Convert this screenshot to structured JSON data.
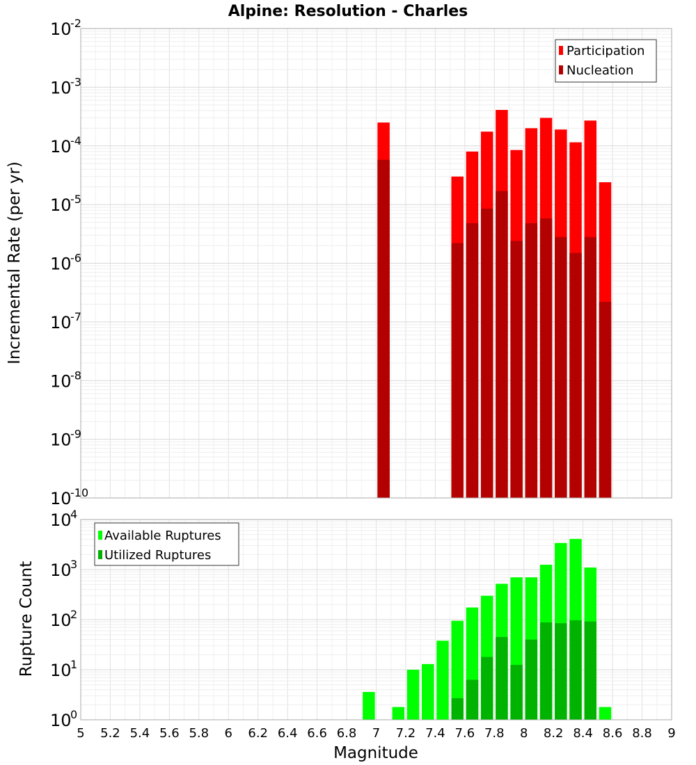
{
  "title": "Alpine: Resolution - Charles",
  "colors": {
    "participation": "#ff0000",
    "nucleation": "#b30000",
    "available": "#00ff00",
    "utilized": "#00b300"
  },
  "chart_data": [
    {
      "type": "bar",
      "name": "rates",
      "ylabel": "Incremental Rate (per yr)",
      "yscale": "log",
      "ylim_exp": [
        -10,
        -2
      ],
      "xlim": [
        5,
        9
      ],
      "grid": true,
      "legend_placement": "top-right",
      "x": [
        7.05,
        7.55,
        7.65,
        7.75,
        7.85,
        7.95,
        8.05,
        8.15,
        8.25,
        8.35,
        8.45,
        8.55
      ],
      "series": [
        {
          "name": "Participation",
          "values": [
            0.00025,
            3e-05,
            8e-05,
            0.000175,
            0.00041,
            8.5e-05,
            0.0002,
            0.0003,
            0.00019,
            0.000115,
            0.00027,
            2.4e-05
          ]
        },
        {
          "name": "Nucleation",
          "values": [
            5.8e-05,
            2.2e-06,
            4.8e-06,
            8.5e-06,
            1.7e-05,
            2.4e-06,
            4.8e-06,
            5.8e-06,
            2.8e-06,
            1.5e-06,
            2.8e-06,
            2.2e-07
          ]
        }
      ]
    },
    {
      "type": "bar",
      "name": "counts",
      "xlabel": "Magnitude",
      "ylabel": "Rupture Count",
      "yscale": "log",
      "ylim_exp": [
        0,
        4
      ],
      "xlim": [
        5,
        9
      ],
      "grid": true,
      "legend_placement": "top-left",
      "x_ticks": [
        "5",
        "5.2",
        "5.4",
        "5.6",
        "5.8",
        "6",
        "6.2",
        "6.4",
        "6.6",
        "6.8",
        "7",
        "7.2",
        "7.4",
        "7.6",
        "7.8",
        "8",
        "8.2",
        "8.4",
        "8.6",
        "8.8",
        "9"
      ],
      "x": [
        6.45,
        6.95,
        7.05,
        7.15,
        7.25,
        7.35,
        7.45,
        7.55,
        7.65,
        7.75,
        7.85,
        7.95,
        8.05,
        8.15,
        8.25,
        8.35,
        8.45,
        8.55
      ],
      "series": [
        {
          "name": "Available Ruptures",
          "values": [
            1,
            3.6,
            1,
            1.8,
            10,
            13,
            38,
            95,
            175,
            300,
            520,
            700,
            700,
            1250,
            3400,
            4100,
            1100,
            1.8
          ]
        },
        {
          "name": "Utilized Ruptures",
          "values": [
            0,
            0,
            1,
            0,
            0,
            0,
            0,
            2.7,
            6.3,
            18,
            45,
            12.5,
            40,
            88,
            85,
            97,
            92,
            0
          ]
        }
      ]
    }
  ]
}
